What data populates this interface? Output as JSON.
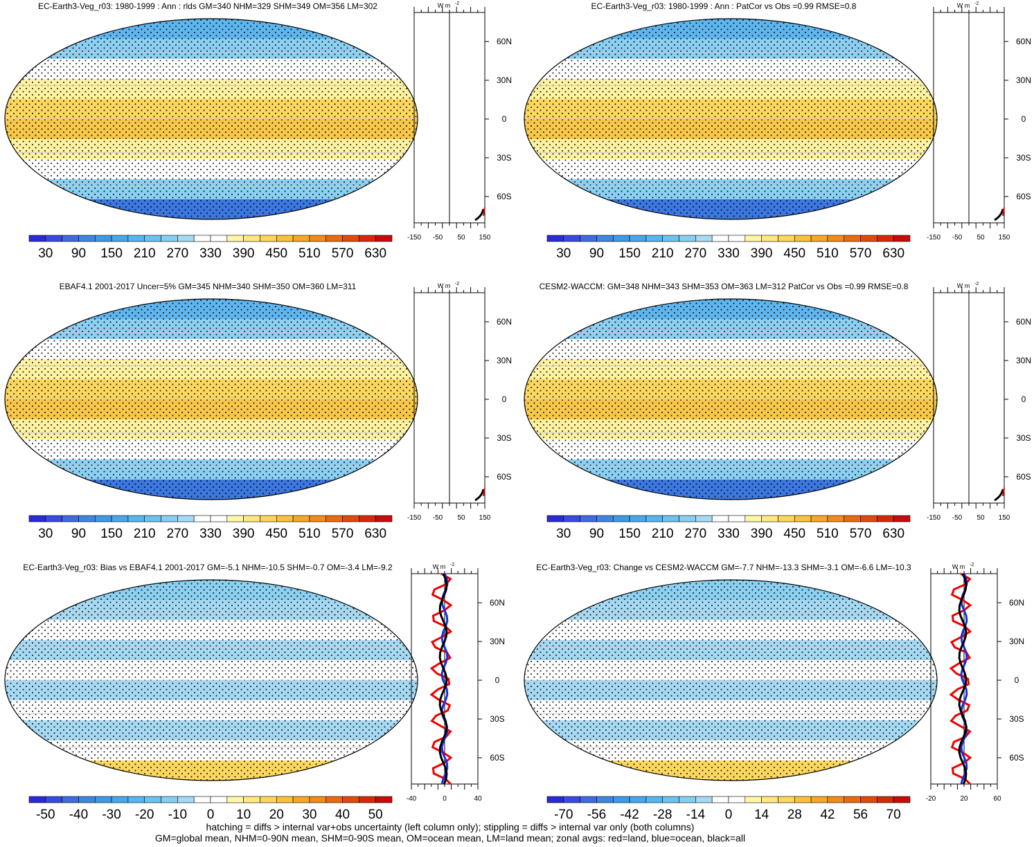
{
  "panels": [
    {
      "title": "EC-Earth3-Veg_r03: 1980-1999 : Ann : rlds GM=340 NHM=329 SHM=349 OM=356 LM=302",
      "colorbar_labels": [
        "30",
        "90",
        "150",
        "210",
        "270",
        "330",
        "390",
        "450",
        "510",
        "570",
        "630"
      ],
      "zonal_xticks": [
        "-150",
        "-50",
        "50",
        "150"
      ]
    },
    {
      "title": "EC-Earth3-Veg_r03: 1980-1999 : Ann : PatCor vs Obs =0.99 RMSE=0.8",
      "colorbar_labels": [
        "30",
        "90",
        "150",
        "210",
        "270",
        "330",
        "390",
        "450",
        "510",
        "570",
        "630"
      ],
      "zonal_xticks": [
        "-150",
        "-50",
        "50",
        "150"
      ]
    },
    {
      "title": "EBAF4.1 2001-2017 Uncer=5% GM=345 NHM=340 SHM=350 OM=360 LM=311",
      "colorbar_labels": [
        "30",
        "90",
        "150",
        "210",
        "270",
        "330",
        "390",
        "450",
        "510",
        "570",
        "630"
      ],
      "zonal_xticks": [
        "-150",
        "-50",
        "50",
        "150"
      ]
    },
    {
      "title": "CESM2-WACCM: GM=348 NHM=343 SHM=353 OM=363 LM=312 PatCor vs Obs =0.99 RMSE=0.8",
      "colorbar_labels": [
        "30",
        "90",
        "150",
        "210",
        "270",
        "330",
        "390",
        "450",
        "510",
        "570",
        "630"
      ],
      "zonal_xticks": [
        "-150",
        "-50",
        "50",
        "150"
      ]
    },
    {
      "title": "EC-Earth3-Veg_r03: Bias vs EBAF4.1 2001-2017 GM=-5.1 NHM=-10.5 SHM=-0.7 OM=-3.4 LM=-9.2",
      "colorbar_labels": [
        "-50",
        "-40",
        "-30",
        "-20",
        "-10",
        "0",
        "10",
        "20",
        "30",
        "40",
        "50"
      ],
      "zonal_xticks": [
        "-40",
        "0",
        "40"
      ]
    },
    {
      "title": "EC-Earth3-Veg_r03: Change vs CESM2-WACCM GM=-7.7 NHM=-13.3 SHM=-3.1 OM=-6.6 LM=-10.3",
      "colorbar_labels": [
        "-70",
        "-56",
        "-42",
        "-28",
        "-14",
        "0",
        "14",
        "28",
        "42",
        "56",
        "70"
      ],
      "zonal_xticks": [
        "-20",
        "20",
        "60"
      ]
    }
  ],
  "zonal_lat_labels": [
    "60N",
    "30N",
    "0",
    "30S",
    "60S"
  ],
  "unit": "W m",
  "unit_exp": "-2",
  "colorbar_colors": [
    "#2a2ad8",
    "#3a4ae0",
    "#3f6ae0",
    "#3f86e0",
    "#3d9ae6",
    "#46a8ea",
    "#56b6ee",
    "#6cc2f0",
    "#86cef2",
    "#a6daf4",
    "#ffffff",
    "#ffffff",
    "#fff7a8",
    "#ffe880",
    "#fdd65a",
    "#f8c23a",
    "#f4a824",
    "#f08c18",
    "#ea6a10",
    "#e04a0c",
    "#d8280a",
    "#c80a0a"
  ],
  "footer": [
    "hatching = diffs > internal var+obs uncertainty (left column only); stippling = diffs > internal var only (both columns)",
    "GM=global mean, NHM=0-90N mean, SHM=0-90S mean, OM=ocean mean, LM=land mean; zonal avgs: red=land, blue=ocean, black=all"
  ]
}
